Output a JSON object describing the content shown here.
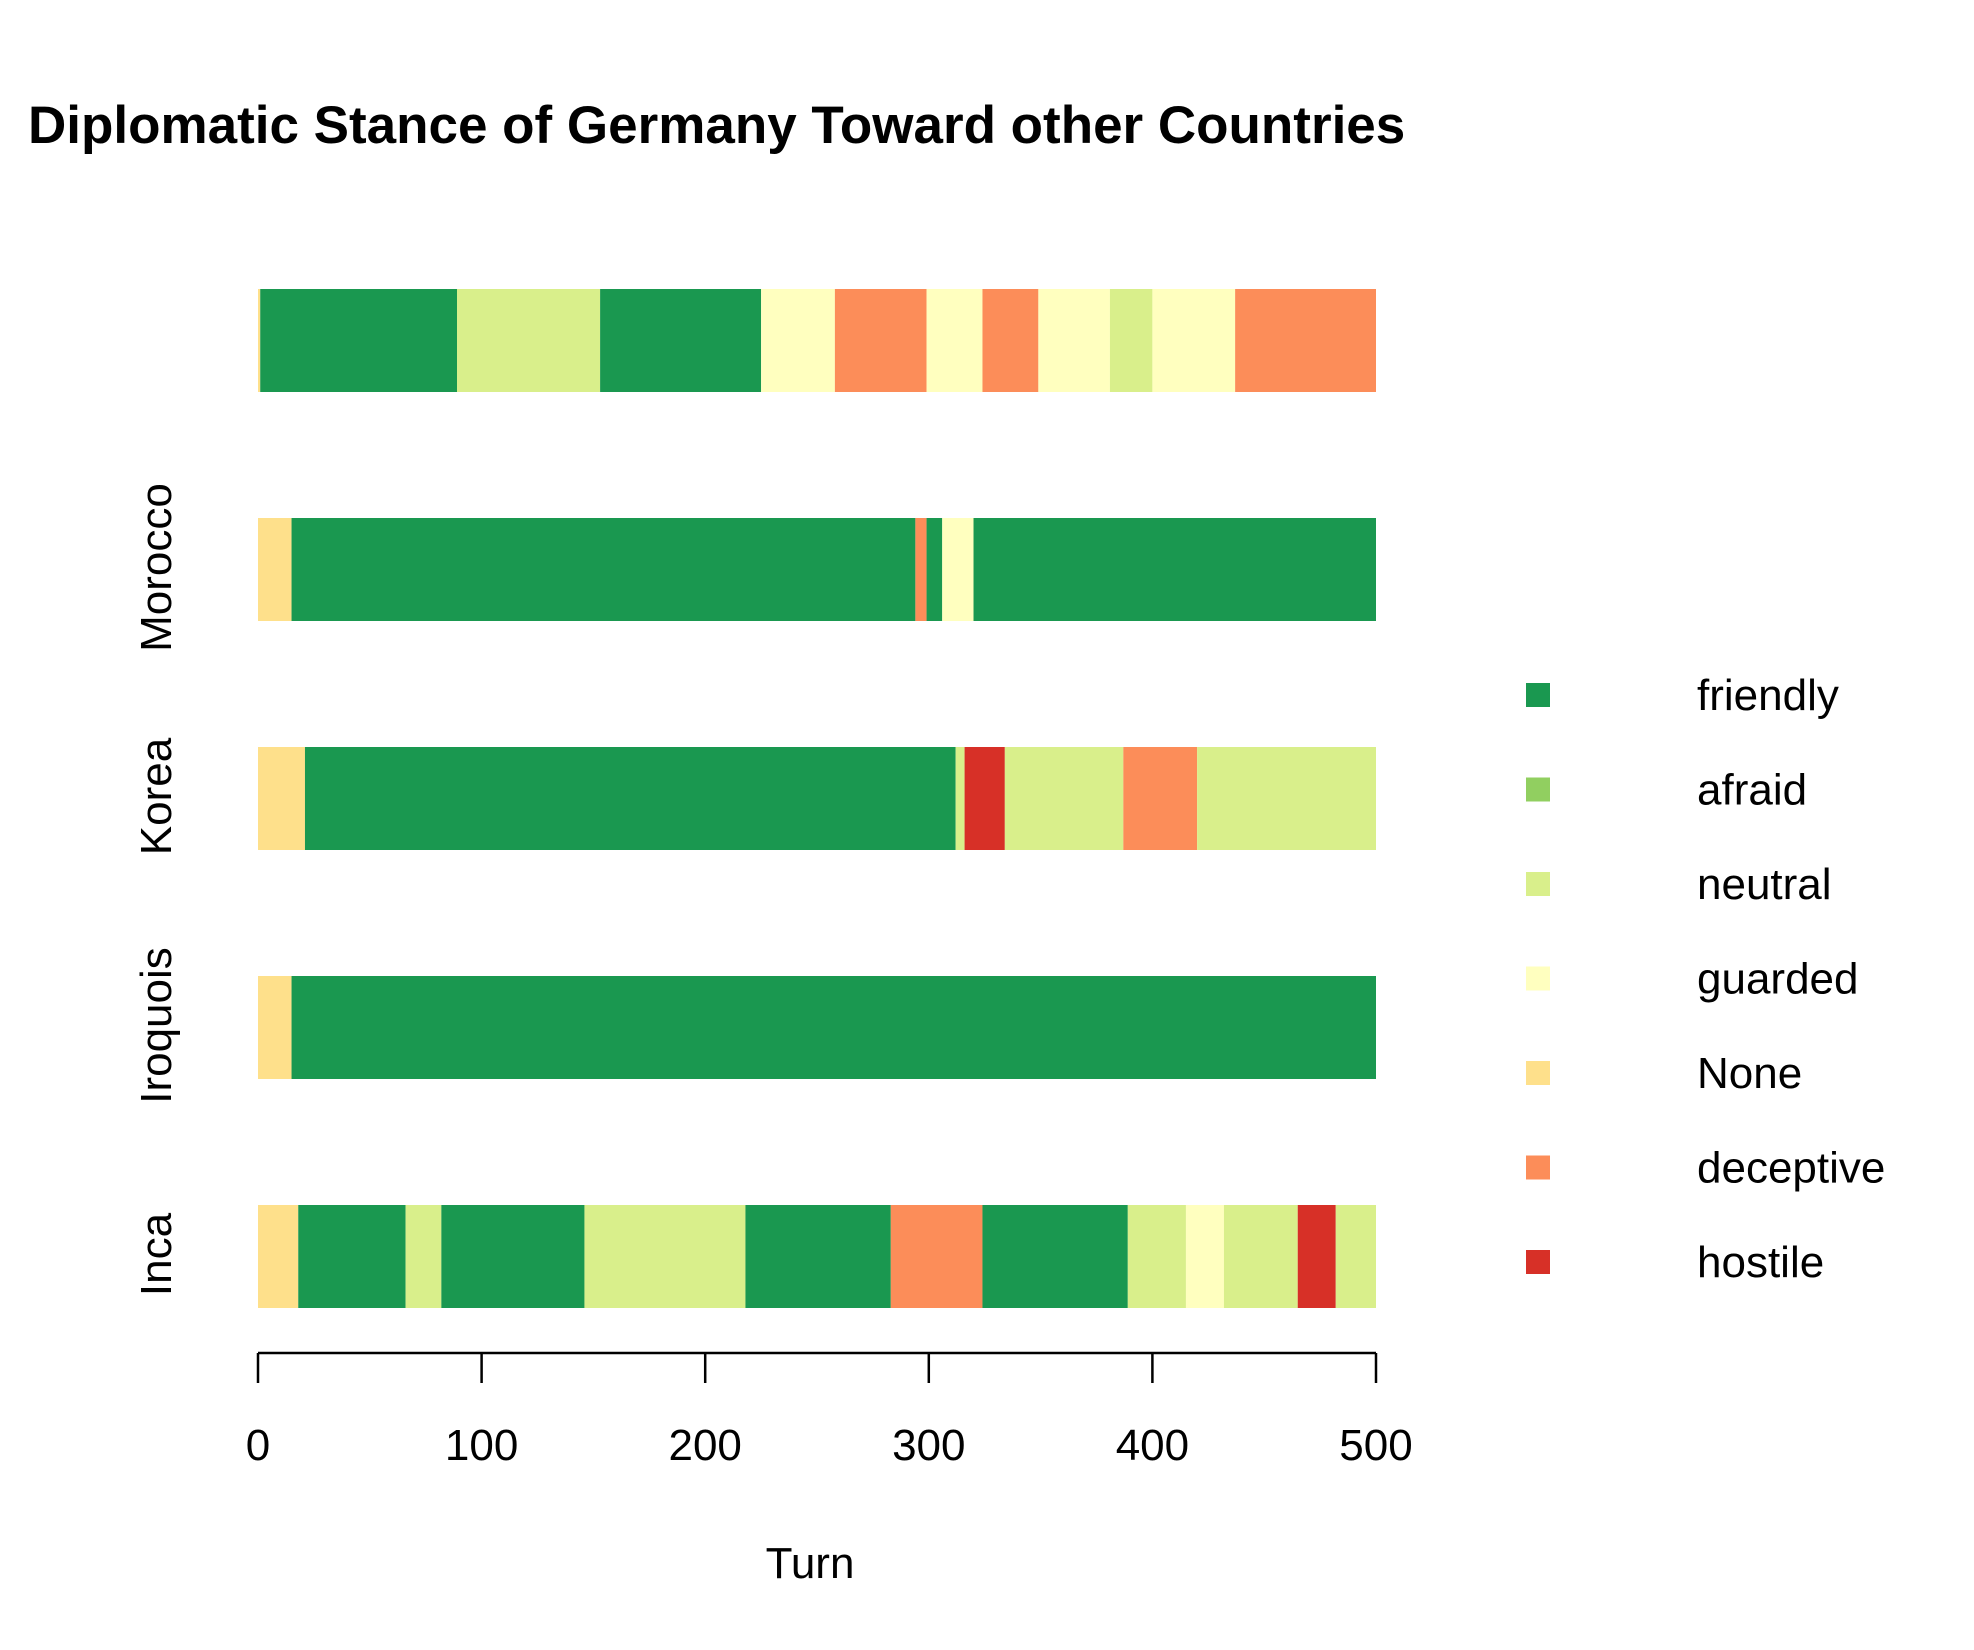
{
  "chart_data": {
    "type": "bar",
    "orientation": "horizontal-stacked-segments",
    "title": "Diplomatic Stance of Germany Toward other Countries",
    "xlabel": "Turn",
    "ylabel": "",
    "xlim": [
      0,
      500
    ],
    "xticks": [
      0,
      100,
      200,
      300,
      400,
      500
    ],
    "grid": false,
    "legend_position": "right",
    "stances": [
      {
        "name": "friendly",
        "color": "#1a9850"
      },
      {
        "name": "afraid",
        "color": "#91cf60"
      },
      {
        "name": "neutral",
        "color": "#d9ef8b"
      },
      {
        "name": "guarded",
        "color": "#ffffbf"
      },
      {
        "name": "None",
        "color": "#fee08b"
      },
      {
        "name": "deceptive",
        "color": "#fc8d59"
      },
      {
        "name": "hostile",
        "color": "#d73027"
      }
    ],
    "rows": [
      {
        "label": "",
        "segments": [
          {
            "stance": "None",
            "start": 0,
            "end": 1
          },
          {
            "stance": "friendly",
            "start": 1,
            "end": 89
          },
          {
            "stance": "neutral",
            "start": 89,
            "end": 153
          },
          {
            "stance": "friendly",
            "start": 153,
            "end": 225
          },
          {
            "stance": "guarded",
            "start": 225,
            "end": 258
          },
          {
            "stance": "deceptive",
            "start": 258,
            "end": 299
          },
          {
            "stance": "guarded",
            "start": 299,
            "end": 324
          },
          {
            "stance": "deceptive",
            "start": 324,
            "end": 349
          },
          {
            "stance": "guarded",
            "start": 349,
            "end": 381
          },
          {
            "stance": "neutral",
            "start": 381,
            "end": 400
          },
          {
            "stance": "guarded",
            "start": 400,
            "end": 437
          },
          {
            "stance": "deceptive",
            "start": 437,
            "end": 500
          }
        ]
      },
      {
        "label": "Morocco",
        "segments": [
          {
            "stance": "None",
            "start": 0,
            "end": 15
          },
          {
            "stance": "friendly",
            "start": 15,
            "end": 294
          },
          {
            "stance": "deceptive",
            "start": 294,
            "end": 299
          },
          {
            "stance": "friendly",
            "start": 299,
            "end": 306
          },
          {
            "stance": "guarded",
            "start": 306,
            "end": 320
          },
          {
            "stance": "friendly",
            "start": 320,
            "end": 500
          }
        ]
      },
      {
        "label": "Korea",
        "segments": [
          {
            "stance": "None",
            "start": 0,
            "end": 21
          },
          {
            "stance": "friendly",
            "start": 21,
            "end": 312
          },
          {
            "stance": "neutral",
            "start": 312,
            "end": 316
          },
          {
            "stance": "hostile",
            "start": 316,
            "end": 334
          },
          {
            "stance": "neutral",
            "start": 334,
            "end": 387
          },
          {
            "stance": "deceptive",
            "start": 387,
            "end": 420
          },
          {
            "stance": "neutral",
            "start": 420,
            "end": 500
          }
        ]
      },
      {
        "label": "Iroquois",
        "segments": [
          {
            "stance": "None",
            "start": 0,
            "end": 15
          },
          {
            "stance": "friendly",
            "start": 15,
            "end": 500
          }
        ]
      },
      {
        "label": "Inca",
        "segments": [
          {
            "stance": "None",
            "start": 0,
            "end": 18
          },
          {
            "stance": "friendly",
            "start": 18,
            "end": 66
          },
          {
            "stance": "neutral",
            "start": 66,
            "end": 82
          },
          {
            "stance": "friendly",
            "start": 82,
            "end": 146
          },
          {
            "stance": "neutral",
            "start": 146,
            "end": 218
          },
          {
            "stance": "friendly",
            "start": 218,
            "end": 283
          },
          {
            "stance": "deceptive",
            "start": 283,
            "end": 324
          },
          {
            "stance": "friendly",
            "start": 324,
            "end": 389
          },
          {
            "stance": "neutral",
            "start": 389,
            "end": 415
          },
          {
            "stance": "guarded",
            "start": 415,
            "end": 432
          },
          {
            "stance": "neutral",
            "start": 432,
            "end": 465
          },
          {
            "stance": "hostile",
            "start": 465,
            "end": 482
          },
          {
            "stance": "neutral",
            "start": 482,
            "end": 500
          }
        ]
      }
    ]
  }
}
